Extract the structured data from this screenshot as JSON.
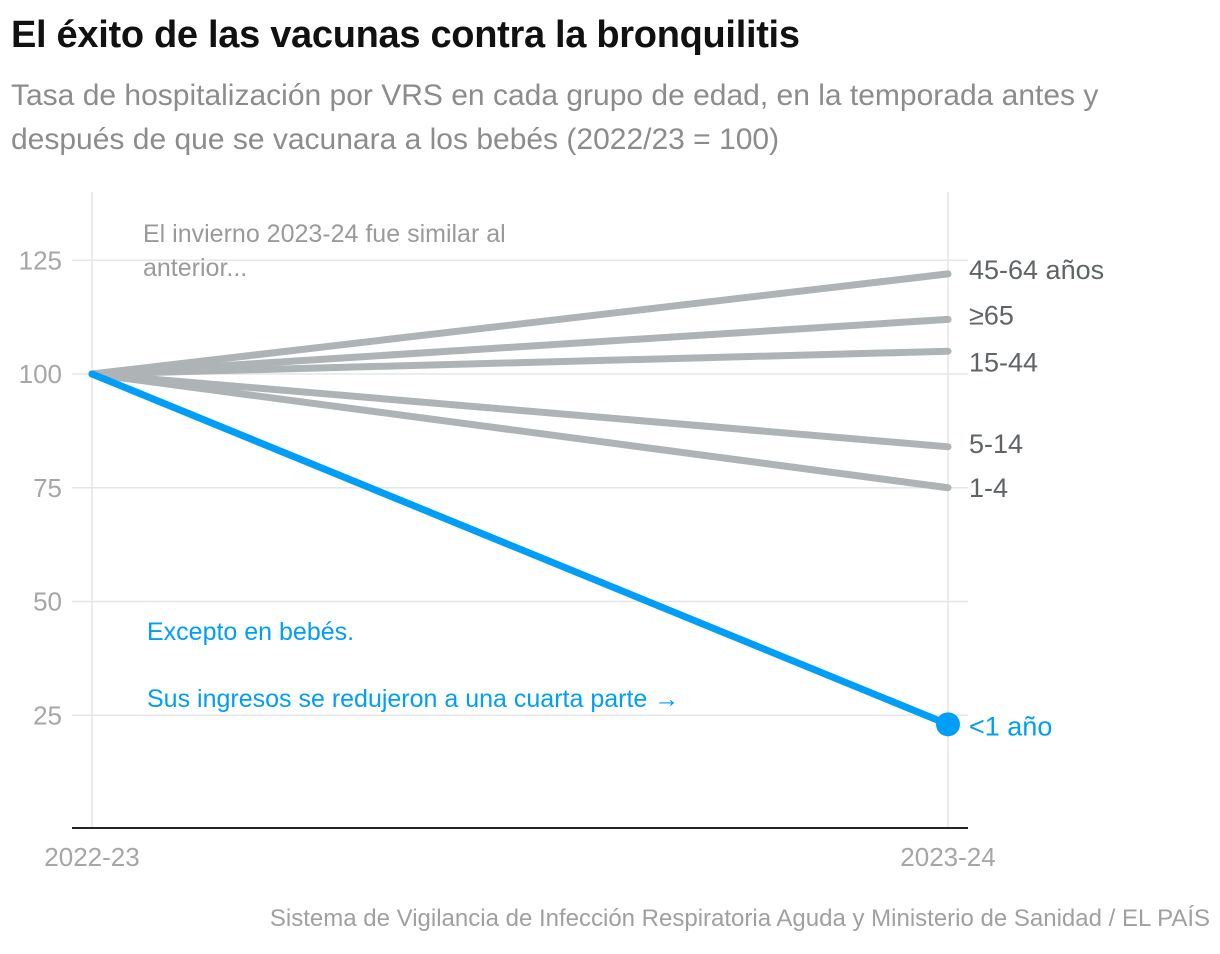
{
  "header": {
    "title": "El éxito de las vacunas contra la bronquilitis",
    "subtitle": "Tasa de hospitalización por VRS en cada grupo de edad, en la temporada antes y después de que se vacunara a los bebés (2022/23 = 100)"
  },
  "footer": {
    "source": "Sistema de Vigilancia de Infección Respiratoria Aguda y Ministerio de Sanidad / EL PAÍS"
  },
  "colors": {
    "highlight": "#009ef7",
    "muted_line": "#aeb4b5",
    "label_gray": "#5f6466",
    "grid": "#e6e6e6",
    "axis_text": "#a6a6a6",
    "annotation_gray": "#9a9a9a"
  },
  "chart_data": {
    "type": "line",
    "title": "El éxito de las vacunas contra la bronquilitis",
    "x": [
      "2022-23",
      "2023-24"
    ],
    "ylim": [
      0,
      140
    ],
    "yticks": [
      25,
      50,
      75,
      100,
      125
    ],
    "xlabel": "",
    "ylabel": "",
    "grid": true,
    "series": [
      {
        "name": "45-64 años",
        "values": [
          100,
          122
        ],
        "highlight": false
      },
      {
        "name": "≥65",
        "values": [
          100,
          112
        ],
        "highlight": false
      },
      {
        "name": "15-44",
        "values": [
          100,
          105
        ],
        "highlight": false
      },
      {
        "name": "5-14",
        "values": [
          100,
          84
        ],
        "highlight": false
      },
      {
        "name": "1-4",
        "values": [
          100,
          75
        ],
        "highlight": false
      },
      {
        "name": "<1 año",
        "values": [
          100,
          23
        ],
        "highlight": true
      }
    ],
    "annotations": {
      "similar": "El invierno 2023-24 fue similar al anterior...",
      "except": "Excepto en bebés.",
      "reduced": "Sus ingresos se redujeron a una cuarta parte →"
    }
  }
}
